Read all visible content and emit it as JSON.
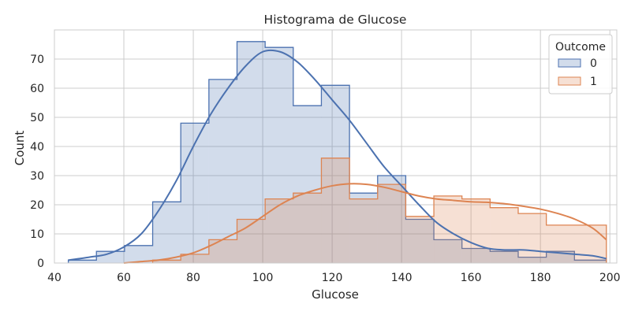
{
  "chart_data": {
    "type": "histogram",
    "title": "Histograma de Glucose",
    "xlabel": "Glucose",
    "ylabel": "Count",
    "xlim": [
      40,
      202
    ],
    "ylim": [
      0,
      80
    ],
    "xticks": [
      40,
      60,
      80,
      100,
      120,
      140,
      160,
      180,
      200
    ],
    "yticks": [
      0,
      10,
      20,
      30,
      40,
      50,
      60,
      70
    ],
    "grid": true,
    "legend": {
      "title": "Outcome",
      "position": "top-right"
    },
    "bin_edges": [
      44,
      52.1,
      60.2,
      68.3,
      76.4,
      84.5,
      92.6,
      100.7,
      108.8,
      116.9,
      125,
      133.1,
      141.2,
      149.3,
      157.4,
      165.5,
      173.6,
      181.7,
      189.8,
      199
    ],
    "series": [
      {
        "name": "0",
        "color": "#4c72b0",
        "fill": "#4c72b0",
        "counts": [
          1,
          4,
          6,
          21,
          48,
          63,
          76,
          74,
          54,
          61,
          24,
          30,
          15,
          8,
          5,
          4,
          2,
          4,
          1
        ],
        "kde": [
          [
            44,
            1
          ],
          [
            50,
            2
          ],
          [
            55,
            3
          ],
          [
            60,
            5.5
          ],
          [
            65,
            10
          ],
          [
            70,
            18
          ],
          [
            75,
            28
          ],
          [
            80,
            40
          ],
          [
            85,
            51
          ],
          [
            90,
            60
          ],
          [
            95,
            67.5
          ],
          [
            100,
            72.5
          ],
          [
            105,
            72.5
          ],
          [
            110,
            69
          ],
          [
            115,
            63
          ],
          [
            120,
            56
          ],
          [
            125,
            49
          ],
          [
            130,
            41
          ],
          [
            135,
            33
          ],
          [
            140,
            26.5
          ],
          [
            145,
            20
          ],
          [
            150,
            14
          ],
          [
            155,
            10
          ],
          [
            160,
            7
          ],
          [
            165,
            5
          ],
          [
            170,
            4.5
          ],
          [
            175,
            4.5
          ],
          [
            180,
            4
          ],
          [
            185,
            3.5
          ],
          [
            190,
            3
          ],
          [
            195,
            2.5
          ],
          [
            199,
            1.5
          ]
        ]
      },
      {
        "name": "1",
        "color": "#dd8452",
        "fill": "#dd8452",
        "counts": [
          0,
          0,
          0,
          1,
          3,
          8,
          15,
          22,
          24,
          36,
          22,
          27,
          16,
          23,
          22,
          19,
          17,
          13,
          13
        ],
        "kde": [
          [
            60,
            0
          ],
          [
            65,
            0.5
          ],
          [
            70,
            1
          ],
          [
            75,
            2
          ],
          [
            80,
            3.5
          ],
          [
            85,
            6
          ],
          [
            90,
            9
          ],
          [
            95,
            12
          ],
          [
            100,
            16
          ],
          [
            105,
            20
          ],
          [
            110,
            23
          ],
          [
            115,
            25
          ],
          [
            120,
            26.5
          ],
          [
            125,
            27.2
          ],
          [
            130,
            27
          ],
          [
            135,
            26
          ],
          [
            140,
            24.5
          ],
          [
            145,
            23
          ],
          [
            150,
            22
          ],
          [
            155,
            21.5
          ],
          [
            160,
            21
          ],
          [
            165,
            20.8
          ],
          [
            170,
            20.3
          ],
          [
            175,
            19.5
          ],
          [
            180,
            18.5
          ],
          [
            185,
            17
          ],
          [
            190,
            15
          ],
          [
            195,
            12
          ],
          [
            199,
            8
          ]
        ]
      }
    ]
  }
}
